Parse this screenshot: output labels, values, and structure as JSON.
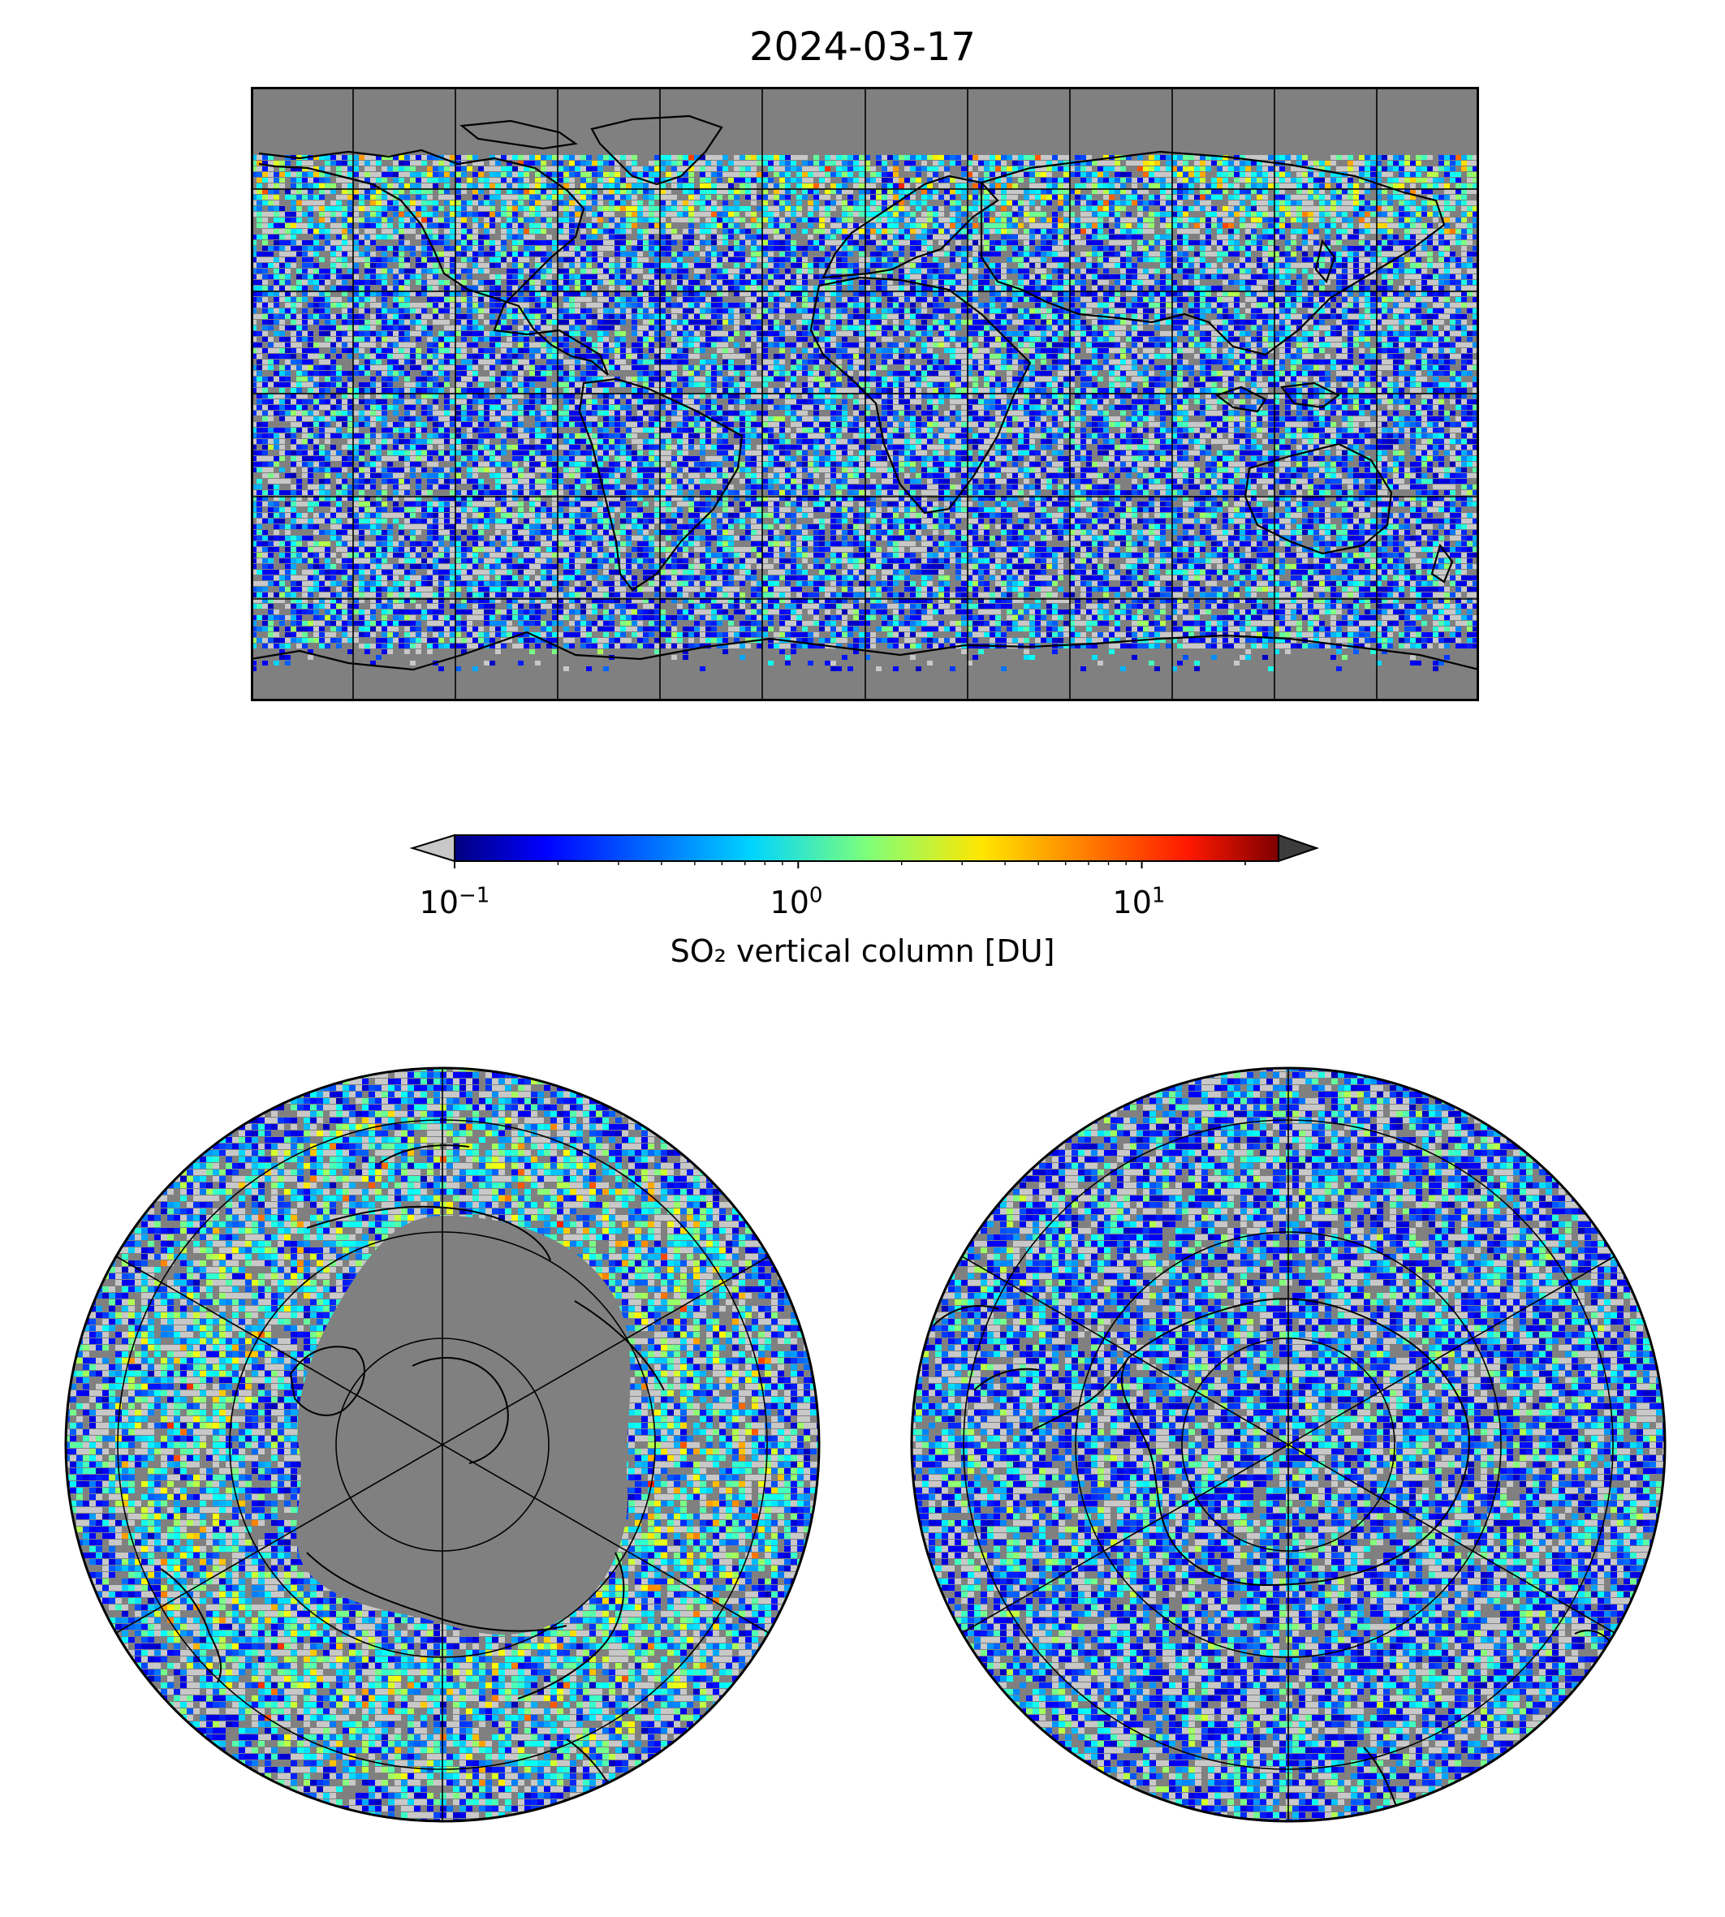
{
  "figure": {
    "title": "2024-03-17"
  },
  "colorbar": {
    "label": "SO₂ vertical column [DU]",
    "scale": "log",
    "range": [
      0.1,
      25
    ],
    "extend": "both",
    "under_color": "#c8c8c8",
    "over_color": "#3c3c3c",
    "colormap": "jet",
    "ticks": [
      {
        "base": "10",
        "exponent": "−1",
        "value": 0.1
      },
      {
        "base": "10",
        "exponent": "0",
        "value": 1
      },
      {
        "base": "10",
        "exponent": "1",
        "value": 10
      }
    ]
  },
  "maps": {
    "world": {
      "projection": "plate-carree",
      "background_color": "#808080",
      "gridlines": true
    },
    "north_polar": {
      "projection": "north-polar-stereographic",
      "background_color": "#808080",
      "gridlines": true
    },
    "south_polar": {
      "projection": "south-polar-stereographic",
      "background_color": "#808080",
      "gridlines": true
    }
  }
}
